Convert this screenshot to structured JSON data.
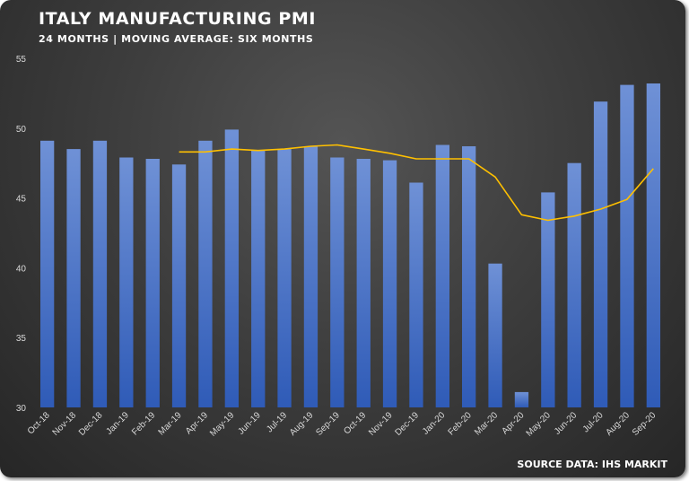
{
  "title": "ITALY MANUFACTURING PMI",
  "subtitle": "24 MONTHS | MOVING AVERAGE: SIX MONTHS",
  "source": "SOURCE DATA: IHS MARKIT",
  "colors": {
    "bar": "#4472C4",
    "line": "#FFC000",
    "background": "#3a3a3a"
  },
  "chart_data": {
    "type": "bar",
    "title": "ITALY MANUFACTURING PMI",
    "subtitle": "24 MONTHS | MOVING AVERAGE: SIX MONTHS",
    "xlabel": "",
    "ylabel": "",
    "ylim": [
      30,
      55
    ],
    "yticks": [
      30,
      35,
      40,
      45,
      50,
      55
    ],
    "grid": false,
    "legend": "none",
    "categories": [
      "Oct-18",
      "Nov-18",
      "Dec-18",
      "Jan-19",
      "Feb-19",
      "Mar-19",
      "Apr-19",
      "May-19",
      "Jun-19",
      "Jul-19",
      "Aug-19",
      "Sep-19",
      "Oct-19",
      "Nov-19",
      "Dec-19",
      "Jan-20",
      "Feb-20",
      "Mar-20",
      "Apr-20",
      "May-20",
      "Jun-20",
      "Jul-20",
      "Aug-20",
      "Sep-20"
    ],
    "series": [
      {
        "type": "bar",
        "values": [
          49.1,
          48.5,
          49.1,
          47.9,
          47.8,
          47.4,
          49.1,
          49.9,
          48.4,
          48.5,
          48.7,
          47.9,
          47.8,
          47.7,
          46.1,
          48.8,
          48.7,
          40.3,
          31.1,
          45.4,
          47.5,
          51.9,
          53.1,
          53.2
        ]
      },
      {
        "type": "line",
        "values": [
          null,
          null,
          null,
          null,
          null,
          48.3,
          48.3,
          48.5,
          48.4,
          48.5,
          48.7,
          48.8,
          48.5,
          48.2,
          47.8,
          47.8,
          47.8,
          46.5,
          43.8,
          43.4,
          43.7,
          44.2,
          44.9,
          47.1
        ]
      }
    ]
  }
}
